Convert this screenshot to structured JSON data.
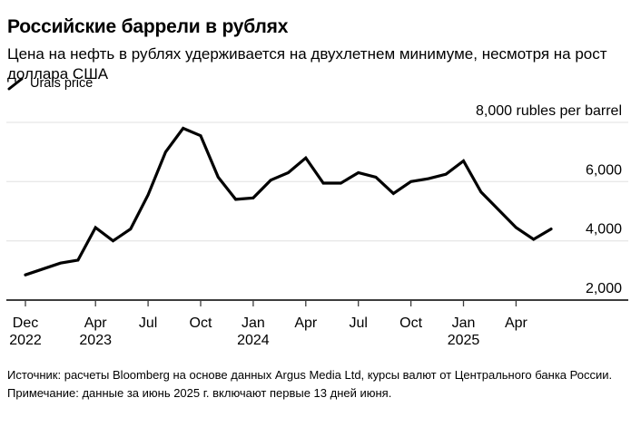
{
  "header": {
    "title": "Российские баррели в рублях",
    "subtitle": "Цена на нефть в рублях удерживается на двухлетнем минимуме, несмотря на рост доллара США"
  },
  "legend": {
    "items": [
      {
        "label": "Urals price",
        "marker": "black-diagonal-line",
        "color": "#000000"
      }
    ]
  },
  "chart_data": {
    "type": "line",
    "title": "Российские баррели в рублях",
    "unit_label": "8,000 rubles per barrel",
    "ylabel": "rubles per barrel",
    "ylim": [
      2000,
      8400
    ],
    "grid": "horizontal",
    "colors": {
      "line": "#000000",
      "grid": "#e0e0e0",
      "axis": "#3d3d3d",
      "text": "#000000"
    },
    "y_ticks": [
      {
        "value": 2000,
        "label": "2,000"
      },
      {
        "value": 4000,
        "label": "4,000"
      },
      {
        "value": 6000,
        "label": "6,000"
      },
      {
        "value": 8000,
        "label": "8,000 rubles per barrel"
      }
    ],
    "x_axis_ticks": [
      {
        "index": 0,
        "month": "Dec",
        "year": "2022"
      },
      {
        "index": 4,
        "month": "Apr",
        "year": "2023"
      },
      {
        "index": 7,
        "month": "Jul",
        "year": ""
      },
      {
        "index": 10,
        "month": "Oct",
        "year": ""
      },
      {
        "index": 13,
        "month": "Jan",
        "year": "2024"
      },
      {
        "index": 16,
        "month": "Apr",
        "year": ""
      },
      {
        "index": 19,
        "month": "Jul",
        "year": ""
      },
      {
        "index": 22,
        "month": "Oct",
        "year": ""
      },
      {
        "index": 25,
        "month": "Jan",
        "year": "2025"
      },
      {
        "index": 28,
        "month": "Apr",
        "year": ""
      }
    ],
    "x": [
      "Dec 2022",
      "Jan 2023",
      "Feb 2023",
      "Mar 2023",
      "Apr 2023",
      "May 2023",
      "Jun 2023",
      "Jul 2023",
      "Aug 2023",
      "Sep 2023",
      "Oct 2023",
      "Nov 2023",
      "Dec 2023",
      "Jan 2024",
      "Feb 2024",
      "Mar 2024",
      "Apr 2024",
      "May 2024",
      "Jun 2024",
      "Jul 2024",
      "Aug 2024",
      "Sep 2024",
      "Oct 2024",
      "Nov 2024",
      "Dec 2024",
      "Jan 2025",
      "Feb 2025",
      "Mar 2025",
      "Apr 2025",
      "May 2025",
      "Jun 2025"
    ],
    "series": [
      {
        "name": "Urals price",
        "color": "#000000",
        "values": [
          2850,
          3050,
          3250,
          3350,
          4450,
          4000,
          4400,
          5550,
          7000,
          7800,
          7550,
          6150,
          5400,
          5450,
          6050,
          6300,
          6800,
          5950,
          5950,
          6300,
          6150,
          5600,
          6000,
          6100,
          6250,
          6700,
          5650,
          5050,
          4450,
          4050,
          4400
        ]
      }
    ]
  },
  "footnotes": {
    "source": "Источник: расчеты Bloomberg на основе данных Argus Media Ltd, курсы валют от Центрального банка России.",
    "note": "Примечание: данные за июнь 2025 г. включают первые 13 дней июня."
  }
}
